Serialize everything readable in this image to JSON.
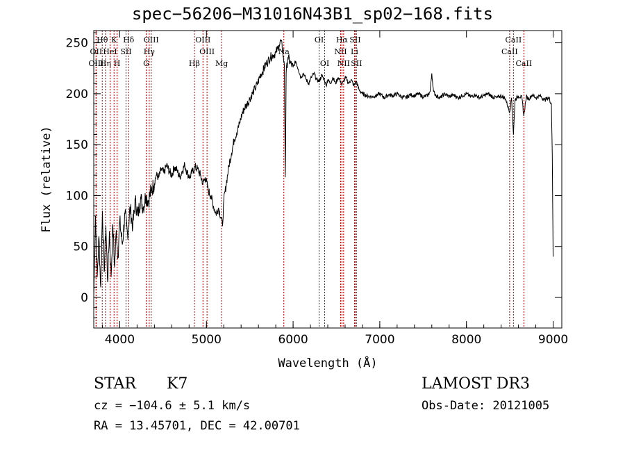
{
  "colors": {
    "spectrum": "#000000",
    "line_marker": "#b00000",
    "axis": "#000000"
  },
  "footer": {
    "object_class": "STAR",
    "subclass": "K7",
    "survey": "LAMOST DR3",
    "redshift": "cz = −104.6 ± 5.1 km/s",
    "obs_date": "Obs-Date: 20121005",
    "coords": "RA =  13.45701, DEC =  42.00701"
  },
  "chart_data": {
    "type": "line",
    "title": "spec−56206−M31016N43B1_sp02−168.fits",
    "xlabel": "Wavelength (Å)",
    "ylabel": "Flux (relative)",
    "xlim": [
      3700,
      9100
    ],
    "ylim": [
      -30,
      262
    ],
    "xticks": [
      4000,
      5000,
      6000,
      7000,
      8000,
      9000
    ],
    "yticks": [
      0,
      50,
      100,
      150,
      200,
      250
    ],
    "series": [
      {
        "name": "spectrum",
        "x": [
          3700,
          3720,
          3740,
          3760,
          3780,
          3800,
          3820,
          3840,
          3860,
          3880,
          3900,
          3920,
          3940,
          3960,
          3980,
          4000,
          4030,
          4060,
          4090,
          4120,
          4150,
          4180,
          4210,
          4240,
          4270,
          4300,
          4330,
          4360,
          4390,
          4420,
          4450,
          4480,
          4510,
          4540,
          4570,
          4600,
          4630,
          4660,
          4690,
          4720,
          4750,
          4780,
          4810,
          4840,
          4870,
          4900,
          4930,
          4960,
          4990,
          5020,
          5050,
          5080,
          5110,
          5140,
          5170,
          5185,
          5200,
          5230,
          5260,
          5290,
          5320,
          5350,
          5380,
          5410,
          5440,
          5470,
          5500,
          5530,
          5560,
          5590,
          5620,
          5650,
          5680,
          5710,
          5740,
          5770,
          5800,
          5820,
          5840,
          5860,
          5880,
          5900,
          5910,
          5920,
          5940,
          5970,
          6000,
          6030,
          6060,
          6090,
          6120,
          6150,
          6180,
          6210,
          6240,
          6270,
          6300,
          6330,
          6360,
          6380,
          6400,
          6430,
          6460,
          6490,
          6520,
          6550,
          6563,
          6580,
          6610,
          6640,
          6670,
          6700,
          6730,
          6760,
          6800,
          6850,
          6900,
          6950,
          7000,
          7050,
          7100,
          7150,
          7200,
          7250,
          7300,
          7350,
          7400,
          7450,
          7500,
          7550,
          7580,
          7600,
          7620,
          7650,
          7700,
          7750,
          7800,
          7850,
          7900,
          7950,
          8000,
          8050,
          8100,
          8150,
          8200,
          8250,
          8300,
          8350,
          8400,
          8450,
          8498,
          8520,
          8542,
          8560,
          8600,
          8640,
          8662,
          8690,
          8720,
          8760,
          8800,
          8850,
          8900,
          8950,
          8980,
          8990,
          9000
        ],
        "y": [
          0,
          80,
          20,
          60,
          10,
          85,
          25,
          70,
          15,
          65,
          20,
          72,
          30,
          66,
          40,
          75,
          52,
          82,
          62,
          88,
          70,
          95,
          80,
          98,
          88,
          100,
          95,
          104,
          110,
          120,
          118,
          126,
          122,
          130,
          124,
          120,
          128,
          125,
          118,
          124,
          130,
          122,
          118,
          124,
          128,
          126,
          120,
          112,
          118,
          105,
          100,
          90,
          82,
          88,
          78,
          70,
          95,
          112,
          130,
          142,
          155,
          162,
          170,
          180,
          186,
          190,
          195,
          200,
          205,
          210,
          218,
          222,
          228,
          232,
          236,
          238,
          240,
          244,
          248,
          252,
          242,
          226,
          118,
          220,
          236,
          230,
          226,
          232,
          224,
          216,
          220,
          214,
          210,
          216,
          220,
          214,
          212,
          218,
          214,
          208,
          214,
          210,
          216,
          210,
          216,
          212,
          208,
          212,
          216,
          210,
          214,
          208,
          212,
          204,
          200,
          198,
          197,
          198,
          200,
          196,
          199,
          198,
          200,
          197,
          196,
          199,
          198,
          200,
          197,
          198,
          202,
          220,
          202,
          198,
          196,
          200,
          197,
          199,
          196,
          198,
          200,
          197,
          199,
          196,
          198,
          200,
          197,
          196,
          198,
          195,
          182,
          196,
          160,
          194,
          198,
          196,
          178,
          197,
          195,
          199,
          196,
          198,
          194,
          196,
          190,
          140,
          40
        ]
      }
    ],
    "lines": [
      {
        "name": "Hθ",
        "wavelength": 3798,
        "label_row": 0
      },
      {
        "name": "K",
        "wavelength": 3934,
        "label_row": 0
      },
      {
        "name": "Hδ",
        "wavelength": 4102,
        "label_row": 0
      },
      {
        "name": "OIII",
        "wavelength": 4363,
        "label_row": 0
      },
      {
        "name": "OIII",
        "wavelength": 4960,
        "label_row": 0
      },
      {
        "name": "Na",
        "wavelength": 5893,
        "label_row": 1
      },
      {
        "name": "OI",
        "wavelength": 6300,
        "label_row": 0
      },
      {
        "name": "OI",
        "wavelength": 6364,
        "label_row": 2
      },
      {
        "name": "Hα",
        "wavelength": 6563,
        "label_row": 0
      },
      {
        "name": "NII",
        "wavelength": 6548,
        "label_row": 1
      },
      {
        "name": "NII",
        "wavelength": 6583,
        "label_row": 2
      },
      {
        "name": "SII",
        "wavelength": 6716,
        "label_row": 0
      },
      {
        "name": "Li",
        "wavelength": 6708,
        "label_row": 1
      },
      {
        "name": "SII",
        "wavelength": 6731,
        "label_row": 2
      },
      {
        "name": "CaII",
        "wavelength": 8542,
        "label_row": 0
      },
      {
        "name": "CaII",
        "wavelength": 8498,
        "label_row": 1
      },
      {
        "name": "CaII",
        "wavelength": 8662,
        "label_row": 2
      },
      {
        "name": "OII",
        "wavelength": 3727,
        "label_row": 1
      },
      {
        "name": "HeI",
        "wavelength": 3888,
        "label_row": 1
      },
      {
        "name": "SII",
        "wavelength": 4072,
        "label_row": 1
      },
      {
        "name": "Hγ",
        "wavelength": 4340,
        "label_row": 1
      },
      {
        "name": "OIII",
        "wavelength": 5007,
        "label_row": 1
      },
      {
        "name": "OIII",
        "wavelength": 3727,
        "label_row": 2
      },
      {
        "name": "Hη",
        "wavelength": 3835,
        "label_row": 2
      },
      {
        "name": "H",
        "wavelength": 3969,
        "label_row": 2
      },
      {
        "name": "G",
        "wavelength": 4305,
        "label_row": 2
      },
      {
        "name": "Hβ",
        "wavelength": 4861,
        "label_row": 2
      },
      {
        "name": "Mg",
        "wavelength": 5175,
        "label_row": 2
      }
    ]
  }
}
